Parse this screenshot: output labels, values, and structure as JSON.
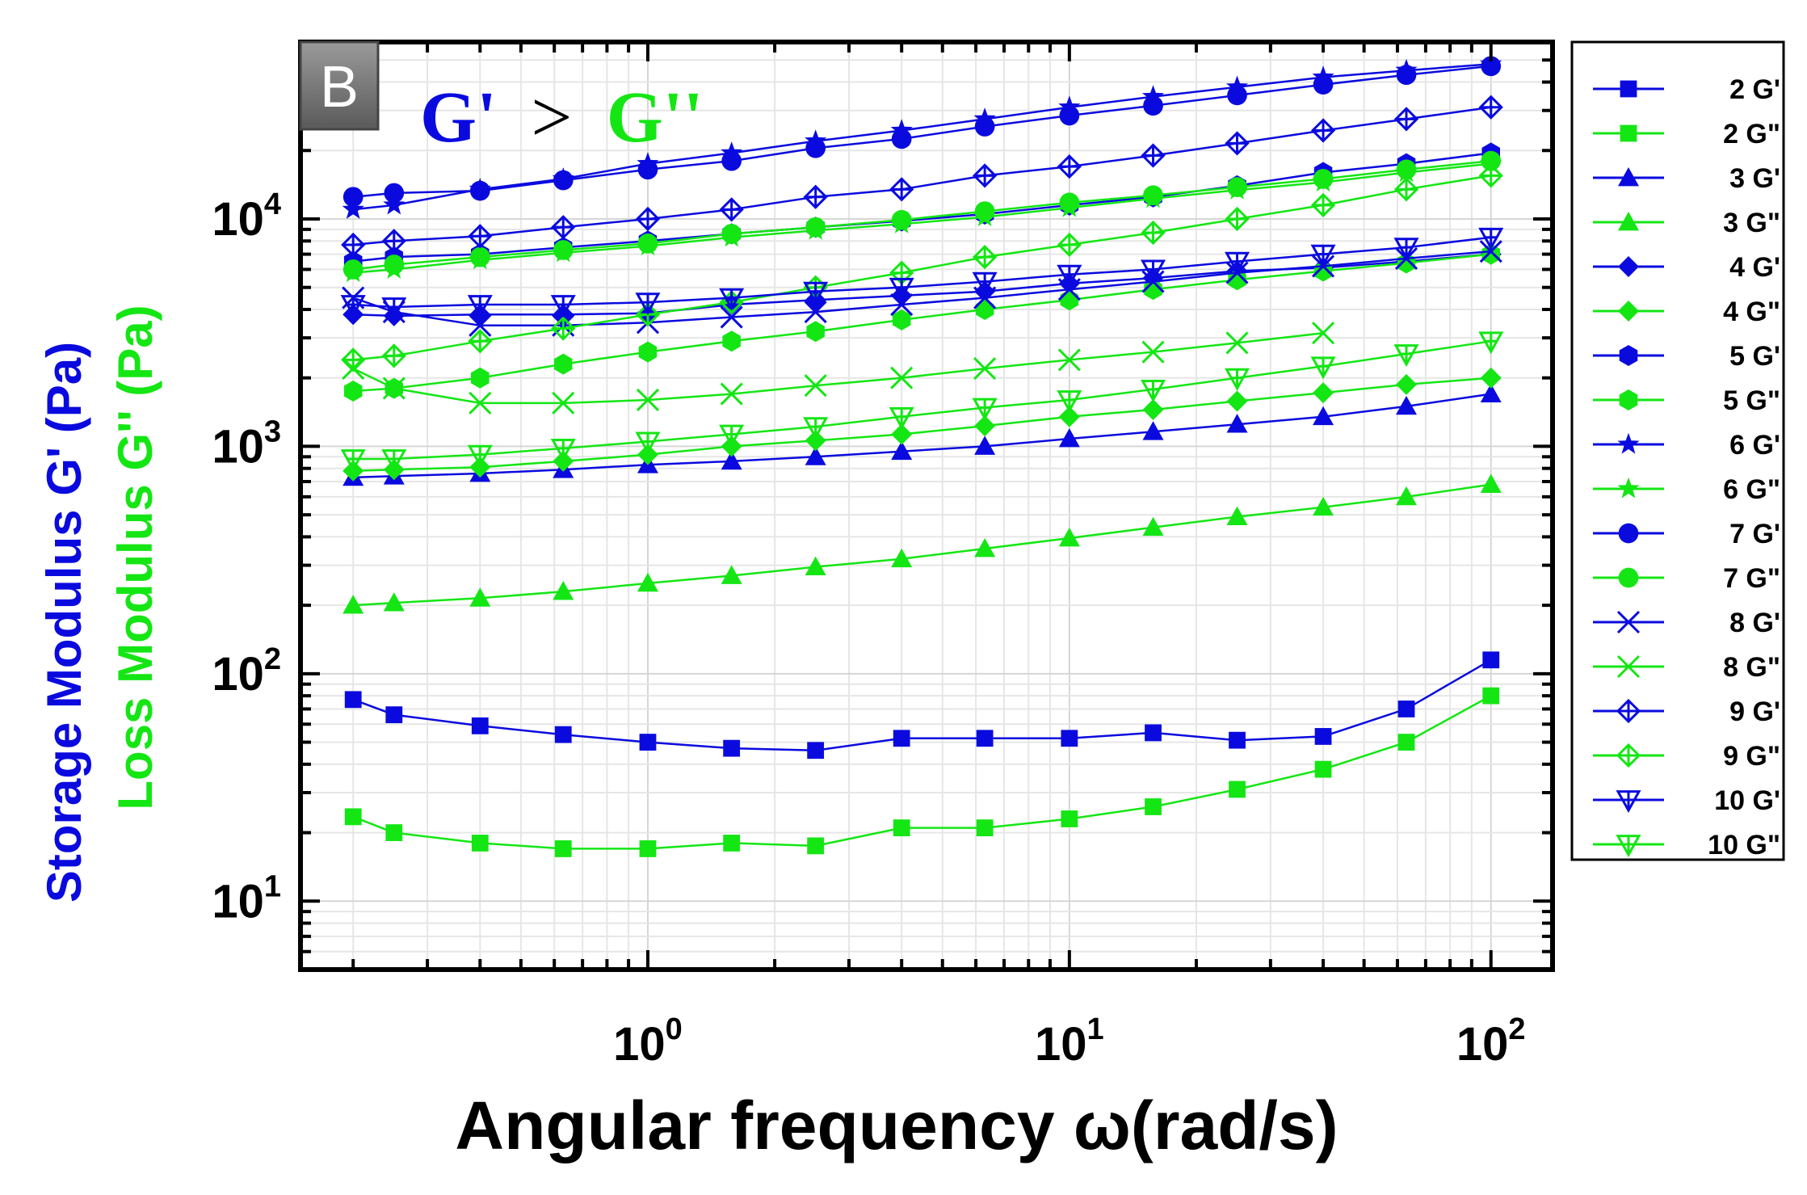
{
  "chart_data": {
    "type": "line",
    "panel_label": "B",
    "annotation": {
      "left": "G'",
      "operator": ">",
      "right": "G''"
    },
    "xlabel": "Angular frequency ω(rad/s)",
    "ylabel_storage": "Storage Modulus G' (Pa)",
    "ylabel_loss": "Loss Modulus G'' (Pa)",
    "x_scale": "log",
    "y_scale": "log",
    "xlim": [
      0.15,
      140
    ],
    "ylim": [
      5,
      60000
    ],
    "x_ticks": [
      {
        "base": "10",
        "exp": "0",
        "value": 1
      },
      {
        "base": "10",
        "exp": "1",
        "value": 10
      },
      {
        "base": "10",
        "exp": "2",
        "value": 100
      }
    ],
    "y_ticks": [
      {
        "base": "10",
        "exp": "1",
        "value": 10
      },
      {
        "base": "10",
        "exp": "2",
        "value": 100
      },
      {
        "base": "10",
        "exp": "3",
        "value": 1000
      },
      {
        "base": "10",
        "exp": "4",
        "value": 10000
      }
    ],
    "colors": {
      "storage": "#0a0adf",
      "loss": "#14e614"
    },
    "legend_position": "right-outside",
    "x": [
      0.2,
      0.25,
      0.4,
      0.63,
      1.0,
      1.58,
      2.5,
      4.0,
      6.3,
      10,
      15.8,
      25,
      40,
      63,
      100
    ],
    "series": [
      {
        "name": "2 G'",
        "label": "2 G'",
        "kind": "storage",
        "marker": "square",
        "values": [
          77,
          66,
          59,
          54,
          50,
          47,
          46,
          52,
          52,
          52,
          55,
          51,
          53,
          70,
          115
        ]
      },
      {
        "name": "2 G\"",
        "label": "2 G\"",
        "kind": "loss",
        "marker": "square",
        "values": [
          23.5,
          20,
          18,
          17,
          17,
          18,
          17.5,
          21,
          21,
          23,
          26,
          31,
          38,
          50,
          80
        ]
      },
      {
        "name": "3 G'",
        "label": "3 G'",
        "kind": "storage",
        "marker": "triangle",
        "values": [
          730,
          740,
          760,
          790,
          830,
          860,
          900,
          950,
          1000,
          1080,
          1160,
          1250,
          1350,
          1500,
          1700
        ]
      },
      {
        "name": "3 G\"",
        "label": "3 G\"",
        "kind": "loss",
        "marker": "triangle",
        "values": [
          200,
          205,
          215,
          230,
          250,
          270,
          295,
          320,
          355,
          395,
          440,
          490,
          540,
          600,
          680
        ]
      },
      {
        "name": "4 G'",
        "label": "4 G'",
        "kind": "storage",
        "marker": "diamond",
        "values": [
          3800,
          3750,
          3800,
          3800,
          3850,
          4200,
          4400,
          4600,
          4800,
          5200,
          5500,
          5900,
          6100,
          6500,
          7000
        ]
      },
      {
        "name": "4 G\"",
        "label": "4 G\"",
        "kind": "loss",
        "marker": "diamond",
        "values": [
          780,
          790,
          810,
          860,
          920,
          1000,
          1060,
          1130,
          1230,
          1350,
          1450,
          1580,
          1720,
          1870,
          2000
        ]
      },
      {
        "name": "5 G'",
        "label": "5 G'",
        "kind": "storage",
        "marker": "hexagon",
        "values": [
          6500,
          6800,
          7000,
          7500,
          8000,
          8600,
          9200,
          9800,
          10500,
          11500,
          12500,
          14000,
          16000,
          17500,
          19500
        ]
      },
      {
        "name": "5 G\"",
        "label": "5 G\"",
        "kind": "loss",
        "marker": "hexagon",
        "values": [
          1750,
          1800,
          2000,
          2300,
          2600,
          2900,
          3200,
          3600,
          4000,
          4400,
          4900,
          5400,
          5900,
          6400,
          7000
        ]
      },
      {
        "name": "6 G'",
        "label": "6 G'",
        "kind": "storage",
        "marker": "star",
        "values": [
          11000,
          11500,
          13500,
          15000,
          17500,
          19500,
          22000,
          24500,
          27500,
          31000,
          34500,
          38000,
          42000,
          45000,
          48000
        ]
      },
      {
        "name": "6 G\"",
        "label": "6 G\"",
        "kind": "loss",
        "marker": "star",
        "values": [
          5800,
          6000,
          6600,
          7100,
          7600,
          8300,
          8900,
          9500,
          10200,
          11200,
          12300,
          13400,
          14500,
          16000,
          17500
        ]
      },
      {
        "name": "7 G'",
        "label": "7 G'",
        "kind": "storage",
        "marker": "circle",
        "values": [
          12500,
          13000,
          13300,
          14800,
          16500,
          18000,
          20500,
          22500,
          25500,
          28500,
          31500,
          35000,
          39000,
          43000,
          47000
        ]
      },
      {
        "name": "7 G\"",
        "label": "7 G\"",
        "kind": "loss",
        "marker": "circle",
        "values": [
          6000,
          6300,
          6800,
          7300,
          7800,
          8600,
          9200,
          9900,
          10800,
          11800,
          12700,
          13800,
          15000,
          16500,
          18000
        ]
      },
      {
        "name": "8 G'",
        "label": "8 G'",
        "kind": "storage",
        "marker": "cross",
        "values": [
          4500,
          3900,
          3400,
          3400,
          3500,
          3700,
          3900,
          4200,
          4500,
          4900,
          5300,
          5800,
          6200,
          6700,
          7200
        ]
      },
      {
        "name": "8 G\"",
        "label": "8 G\"",
        "kind": "loss",
        "marker": "cross",
        "values": [
          2200,
          1800,
          1550,
          1550,
          1600,
          1700,
          1850,
          2000,
          2200,
          2400,
          2600,
          2850,
          3150,
          null,
          null
        ]
      },
      {
        "name": "9 G'",
        "label": "9 G'",
        "kind": "storage",
        "marker": "crossed-diamond",
        "values": [
          7700,
          8000,
          8400,
          9200,
          10000,
          11000,
          12500,
          13500,
          15500,
          17000,
          19000,
          21500,
          24500,
          27500,
          31000
        ]
      },
      {
        "name": "9 G\"",
        "label": "9 G\"",
        "kind": "loss",
        "marker": "crossed-diamond",
        "values": [
          2400,
          2500,
          2900,
          3300,
          3800,
          4300,
          5000,
          5800,
          6800,
          7700,
          8700,
          10000,
          11500,
          13500,
          15500
        ]
      },
      {
        "name": "10 G'",
        "label": "10 G'",
        "kind": "storage",
        "marker": "triangle-down",
        "values": [
          4200,
          4100,
          4200,
          4200,
          4300,
          4500,
          4800,
          5000,
          5300,
          5700,
          6000,
          6500,
          7000,
          7500,
          8300
        ]
      },
      {
        "name": "10 G\"",
        "label": "10 G\"",
        "kind": "loss",
        "marker": "triangle-down",
        "values": [
          880,
          880,
          920,
          980,
          1050,
          1130,
          1220,
          1350,
          1480,
          1600,
          1780,
          2000,
          2250,
          2550,
          2900
        ]
      }
    ]
  }
}
